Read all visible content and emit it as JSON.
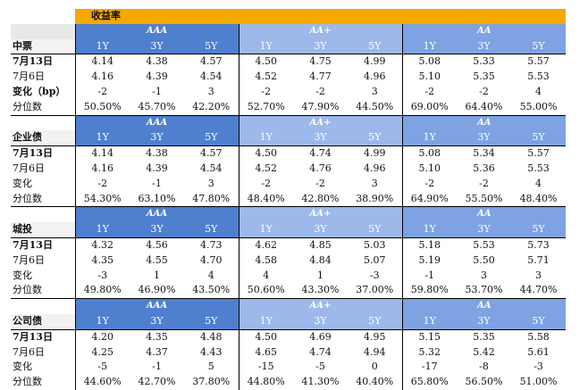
{
  "title": "收益率",
  "ratings": [
    "AAA",
    "AA+",
    "AA"
  ],
  "tenors": [
    "1Y",
    "3Y",
    "5Y",
    "1Y",
    "3Y",
    "5Y",
    "1Y",
    "3Y",
    "5Y"
  ],
  "sections": [
    {
      "name": "中票",
      "rows": [
        {
          "label": "7月13日",
          "values": [
            "4.14",
            "4.38",
            "4.57",
            "4.50",
            "4.75",
            "4.99",
            "5.08",
            "5.33",
            "5.57"
          ]
        },
        {
          "label": "7月6日",
          "values": [
            "4.16",
            "4.39",
            "4.54",
            "4.52",
            "4.77",
            "4.96",
            "5.10",
            "5.35",
            "5.53"
          ]
        },
        {
          "label": "变化（bp）",
          "values": [
            "-2",
            "-1",
            "3",
            "-2",
            "-2",
            "3",
            "-2",
            "-2",
            "4"
          ]
        },
        {
          "label": "分位数",
          "values": [
            "50.50%",
            "45.70%",
            "42.20%",
            "52.70%",
            "47.90%",
            "44.50%",
            "69.00%",
            "64.40%",
            "55.00%"
          ]
        }
      ]
    },
    {
      "name": "企业债",
      "rows": [
        {
          "label": "7月13日",
          "values": [
            "4.14",
            "4.38",
            "4.57",
            "4.50",
            "4.74",
            "4.99",
            "5.08",
            "5.34",
            "5.57"
          ]
        },
        {
          "label": "7月6日",
          "values": [
            "4.16",
            "4.39",
            "4.54",
            "4.52",
            "4.76",
            "4.96",
            "5.10",
            "5.36",
            "5.53"
          ]
        },
        {
          "label": "变化",
          "values": [
            "-2",
            "-1",
            "3",
            "-2",
            "-2",
            "3",
            "-2",
            "-2",
            "4"
          ]
        },
        {
          "label": "分位数",
          "values": [
            "54.30%",
            "63.10%",
            "47.80%",
            "48.40%",
            "42.80%",
            "38.90%",
            "64.90%",
            "55.50%",
            "48.40%"
          ]
        }
      ]
    },
    {
      "name": "城投",
      "rows": [
        {
          "label": "7月13日",
          "values": [
            "4.32",
            "4.56",
            "4.73",
            "4.62",
            "4.85",
            "5.03",
            "5.18",
            "5.53",
            "5.73"
          ]
        },
        {
          "label": "7月6日",
          "values": [
            "4.35",
            "4.55",
            "4.70",
            "4.58",
            "4.84",
            "5.07",
            "5.19",
            "5.50",
            "5.71"
          ]
        },
        {
          "label": "变化",
          "values": [
            "-3",
            "1",
            "4",
            "4",
            "1",
            "-3",
            "-1",
            "3",
            "3"
          ]
        },
        {
          "label": "分位数",
          "values": [
            "49.80%",
            "46.90%",
            "43.50%",
            "50.60%",
            "43.30%",
            "37.00%",
            "59.80%",
            "53.70%",
            "44.70%"
          ]
        }
      ]
    },
    {
      "name": "公司债",
      "rows": [
        {
          "label": "7月13日",
          "values": [
            "4.20",
            "4.35",
            "4.48",
            "4.50",
            "4.69",
            "4.95",
            "5.15",
            "5.35",
            "5.58"
          ]
        },
        {
          "label": "7月6日",
          "values": [
            "4.25",
            "4.37",
            "4.43",
            "4.65",
            "4.74",
            "4.94",
            "5.32",
            "5.42",
            "5.61"
          ]
        },
        {
          "label": "变化",
          "values": [
            "-5",
            "-1",
            "5",
            "-15",
            "-5",
            "0",
            "-17",
            "-8",
            "-3"
          ]
        },
        {
          "label": "分位数",
          "values": [
            "44.60%",
            "42.70%",
            "37.80%",
            "44.80%",
            "41.30%",
            "40.40%",
            "65.80%",
            "56.50%",
            "51.00%"
          ]
        }
      ]
    }
  ]
}
